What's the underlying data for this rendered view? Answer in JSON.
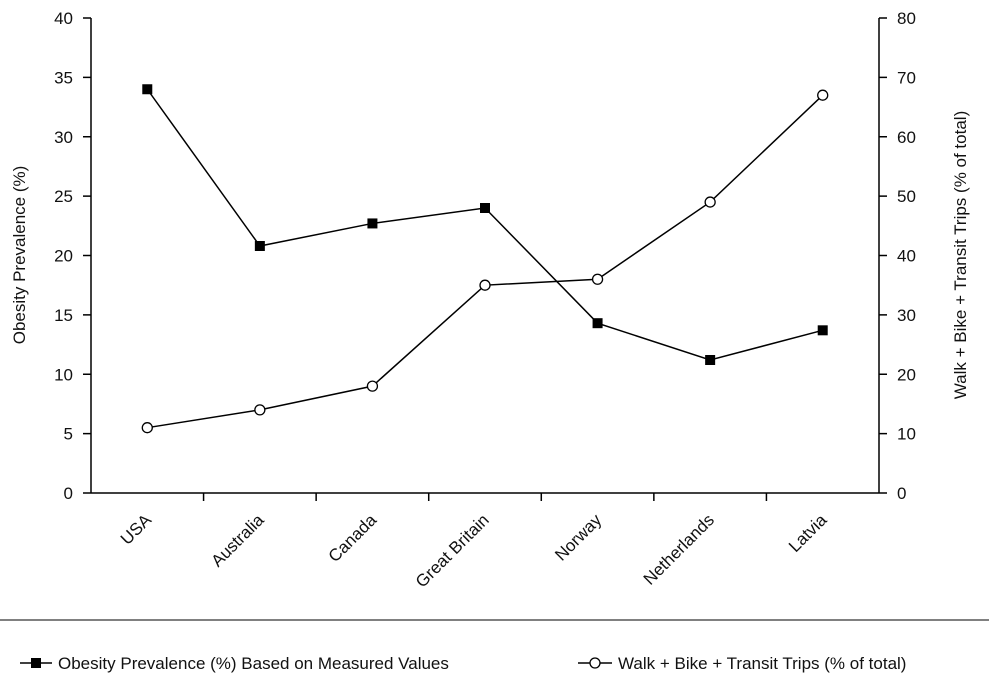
{
  "chart_data": {
    "type": "line",
    "categories": [
      "USA",
      "Australia",
      "Canada",
      "Great Britain",
      "Norway",
      "Netherlands",
      "Latvia"
    ],
    "series": [
      {
        "name": "Obesity Prevalence (%) Based on Measured Values",
        "axis": "left",
        "marker": "filled-square",
        "values": [
          34.0,
          20.8,
          22.7,
          24.0,
          14.3,
          11.2,
          13.7
        ]
      },
      {
        "name": "Walk + Bike + Transit Trips (% of total)",
        "axis": "right",
        "marker": "open-circle",
        "values": [
          11,
          14,
          18,
          35,
          36,
          49,
          67
        ]
      }
    ],
    "ylabel": "Obesity Prevalence (%)",
    "ylabel_right": "Walk + Bike + Transit Trips (% of total)",
    "ylim": [
      0,
      40
    ],
    "ylim_right": [
      0,
      80
    ],
    "yticks": [
      "0",
      "5",
      "10",
      "15",
      "20",
      "25",
      "30",
      "35",
      "40"
    ],
    "yticks_right": [
      "0",
      "10",
      "20",
      "30",
      "40",
      "50",
      "60",
      "70",
      "80"
    ],
    "grid": false,
    "legend_position": "bottom"
  }
}
